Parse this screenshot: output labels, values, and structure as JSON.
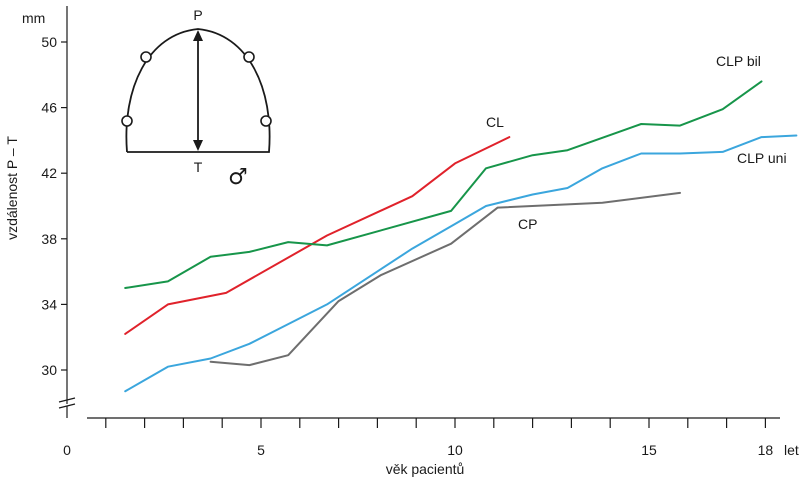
{
  "chart_data": {
    "type": "line",
    "xlabel": "věk pacientů",
    "x_unit": "let",
    "ylabel": "vzdálenost P – T",
    "y_unit": "mm",
    "xlim": [
      0,
      19
    ],
    "ylim": [
      28,
      52
    ],
    "x_ticks": [
      1,
      2,
      3,
      4,
      5,
      6,
      7,
      8,
      9,
      10,
      11,
      12,
      13,
      14,
      15,
      16,
      17,
      18
    ],
    "x_tick_labels": [
      {
        "value": 0,
        "label": "0"
      },
      {
        "value": 5,
        "label": "5"
      },
      {
        "value": 10,
        "label": "10"
      },
      {
        "value": 15,
        "label": "15"
      },
      {
        "value": 18,
        "label": "18"
      }
    ],
    "y_ticks": [
      30,
      34,
      38,
      42,
      46,
      50
    ],
    "y_tick_labels": [
      "30",
      "34",
      "38",
      "42",
      "46",
      "50"
    ],
    "series": [
      {
        "name": "CL",
        "color": "#e0222b",
        "x": [
          1.5,
          2.6,
          4.1,
          6.7,
          8.9,
          10,
          11.4
        ],
        "y": [
          32.2,
          34.0,
          34.7,
          38.2,
          40.6,
          42.6,
          44.2
        ]
      },
      {
        "name": "CLP bil",
        "color": "#17954a",
        "x": [
          1.5,
          2.6,
          3.7,
          4.7,
          5.7,
          6.7,
          9.9,
          10.8,
          12.0,
          12.9,
          14.8,
          15.8,
          16.9,
          17.9
        ],
        "y": [
          35.0,
          35.4,
          36.9,
          37.2,
          37.8,
          37.6,
          39.7,
          42.3,
          43.1,
          43.4,
          45.0,
          44.9,
          45.9,
          47.6
        ]
      },
      {
        "name": "CLP uni",
        "color": "#3ba6dd",
        "x": [
          1.5,
          2.6,
          3.7,
          4.7,
          5.7,
          6.7,
          8.9,
          10.0,
          10.8,
          12.0,
          12.9,
          13.8,
          14.8,
          15.8,
          16.9,
          17.9,
          18.8
        ],
        "y": [
          28.7,
          30.2,
          30.7,
          31.6,
          32.8,
          34.0,
          37.4,
          38.9,
          40.0,
          40.7,
          41.1,
          42.3,
          43.2,
          43.2,
          43.3,
          44.2,
          44.3
        ]
      },
      {
        "name": "CP",
        "color": "#6e6e6e",
        "x": [
          3.7,
          4.7,
          5.7,
          7.0,
          8.1,
          9.9,
          11.1,
          13.8,
          15.8
        ],
        "y": [
          30.5,
          30.3,
          30.9,
          34.2,
          35.8,
          37.7,
          39.9,
          40.2,
          40.8
        ]
      }
    ],
    "inset": {
      "top_label": "P",
      "bottom_label": "T",
      "symbol": "♂"
    }
  }
}
